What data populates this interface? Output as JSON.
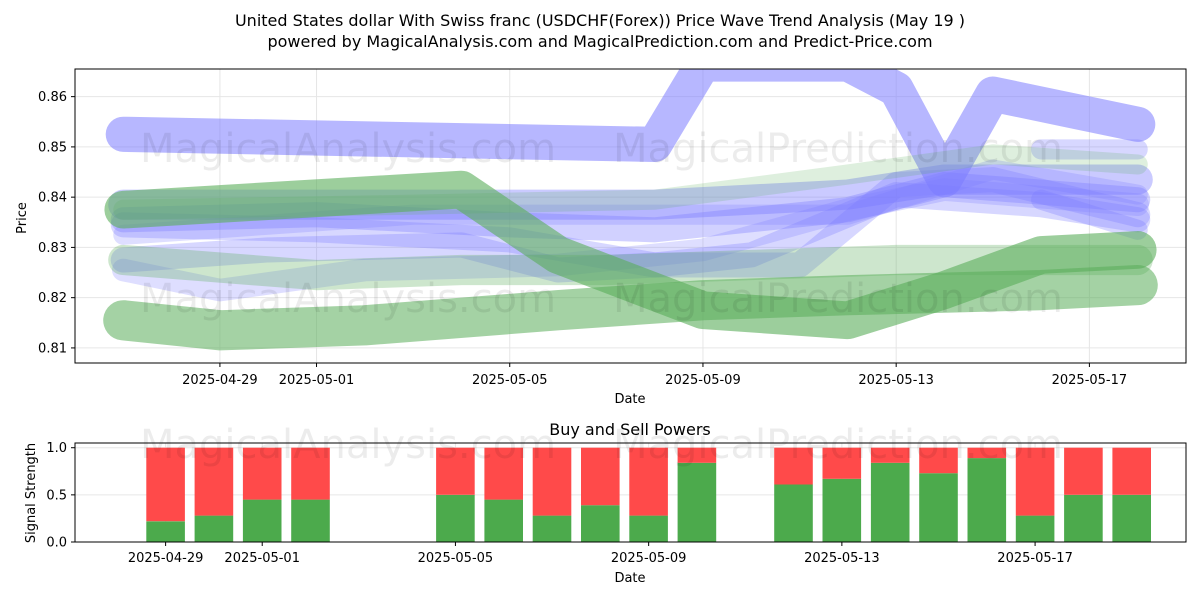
{
  "title": "United States dollar With Swiss franc (USDCHF(Forex)) Price Wave Trend Analysis (May 19 )",
  "subtitle": "powered by MagicalAnalysis.com and MagicalPrediction.com and Predict-Price.com",
  "watermarks": [
    "MagicalAnalysis.com",
    "MagicalPrediction.com"
  ],
  "colors": {
    "blue_band": "#7b7bff",
    "green_band": "#5aad5a",
    "buy": "#4caa4c",
    "sell": "#ff4a4a"
  },
  "chart_data": [
    {
      "type": "line",
      "xlabel": "Date",
      "ylabel": "Price",
      "x_ticks": [
        "2025-04-29",
        "2025-05-01",
        "2025-05-05",
        "2025-05-09",
        "2025-05-13",
        "2025-05-17"
      ],
      "y_ticks": [
        0.81,
        0.82,
        0.83,
        0.84,
        0.85,
        0.86
      ],
      "xlim": [
        "2025-04-26",
        "2025-05-19"
      ],
      "ylim": [
        0.807,
        0.8655
      ],
      "grid": true,
      "series": [
        {
          "color": "blue",
          "width": 14,
          "opacity": 0.55,
          "points": [
            [
              "2025-04-27",
              0.8525
            ],
            [
              "2025-05-08",
              0.8505
            ],
            [
              "2025-05-09",
              0.8665
            ],
            [
              "2025-05-12",
              0.8665
            ],
            [
              "2025-05-13",
              0.8615
            ],
            [
              "2025-05-14",
              0.8435
            ],
            [
              "2025-05-15",
              0.8605
            ],
            [
              "2025-05-16",
              0.8585
            ],
            [
              "2025-05-18",
              0.8545
            ]
          ]
        },
        {
          "color": "blue",
          "width": 12,
          "opacity": 0.4,
          "points": [
            [
              "2025-04-27",
              0.8385
            ],
            [
              "2025-05-04",
              0.8385
            ],
            [
              "2025-05-08",
              0.8385
            ],
            [
              "2025-05-12",
              0.8405
            ],
            [
              "2025-05-14",
              0.8435
            ],
            [
              "2025-05-18",
              0.8435
            ]
          ]
        },
        {
          "color": "blue",
          "width": 10,
          "opacity": 0.35,
          "points": [
            [
              "2025-04-27",
              0.8355
            ],
            [
              "2025-05-01",
              0.8365
            ],
            [
              "2025-05-05",
              0.8345
            ],
            [
              "2025-05-08",
              0.8335
            ],
            [
              "2025-05-12",
              0.8375
            ],
            [
              "2025-05-14",
              0.8425
            ],
            [
              "2025-05-18",
              0.8395
            ]
          ]
        },
        {
          "color": "blue",
          "width": 10,
          "opacity": 0.3,
          "points": [
            [
              "2025-04-27",
              0.8345
            ],
            [
              "2025-05-01",
              0.8335
            ],
            [
              "2025-05-05",
              0.8315
            ],
            [
              "2025-05-08",
              0.8265
            ],
            [
              "2025-05-10",
              0.8285
            ],
            [
              "2025-05-13",
              0.8405
            ],
            [
              "2025-05-16",
              0.8385
            ],
            [
              "2025-05-18",
              0.8355
            ]
          ]
        },
        {
          "color": "blue",
          "width": 10,
          "opacity": 0.3,
          "points": [
            [
              "2025-04-27",
              0.8275
            ],
            [
              "2025-04-30",
              0.8295
            ],
            [
              "2025-05-04",
              0.8305
            ],
            [
              "2025-05-06",
              0.8255
            ],
            [
              "2025-05-08",
              0.8265
            ],
            [
              "2025-05-11",
              0.8265
            ],
            [
              "2025-05-13",
              0.8425
            ],
            [
              "2025-05-15",
              0.8435
            ],
            [
              "2025-05-18",
              0.8365
            ]
          ]
        },
        {
          "color": "blue",
          "width": 9,
          "opacity": 0.25,
          "points": [
            [
              "2025-04-27",
              0.8255
            ],
            [
              "2025-04-29",
              0.8215
            ],
            [
              "2025-05-02",
              0.8255
            ],
            [
              "2025-05-06",
              0.8265
            ],
            [
              "2025-05-09",
              0.8295
            ],
            [
              "2025-05-12",
              0.8375
            ],
            [
              "2025-05-14",
              0.8415
            ],
            [
              "2025-05-18",
              0.8385
            ]
          ]
        },
        {
          "color": "blue",
          "width": 8,
          "opacity": 0.25,
          "points": [
            [
              "2025-04-27",
              0.8325
            ],
            [
              "2025-05-03",
              0.8365
            ],
            [
              "2025-05-08",
              0.8365
            ],
            [
              "2025-05-12",
              0.8365
            ],
            [
              "2025-05-15",
              0.8455
            ],
            [
              "2025-05-18",
              0.8405
            ]
          ]
        },
        {
          "color": "blue",
          "width": 8,
          "opacity": 0.3,
          "points": [
            [
              "2025-05-16",
              0.8495
            ],
            [
              "2025-05-18",
              0.8495
            ]
          ]
        },
        {
          "color": "blue",
          "width": 8,
          "opacity": 0.3,
          "points": [
            [
              "2025-05-16",
              0.8395
            ],
            [
              "2025-05-18",
              0.8335
            ]
          ]
        },
        {
          "color": "green",
          "width": 8,
          "opacity": 0.2,
          "points": [
            [
              "2025-04-27",
              0.8375
            ],
            [
              "2025-05-03",
              0.8385
            ],
            [
              "2025-05-08",
              0.8395
            ],
            [
              "2025-05-12",
              0.8445
            ],
            [
              "2025-05-15",
              0.8485
            ],
            [
              "2025-05-18",
              0.8465
            ]
          ]
        },
        {
          "color": "green",
          "width": 12,
          "opacity": 0.3,
          "points": [
            [
              "2025-04-27",
              0.8275
            ],
            [
              "2025-05-01",
              0.8245
            ],
            [
              "2025-05-04",
              0.8255
            ],
            [
              "2025-05-07",
              0.8255
            ],
            [
              "2025-05-10",
              0.8265
            ],
            [
              "2025-05-13",
              0.8275
            ],
            [
              "2025-05-18",
              0.8275
            ]
          ]
        },
        {
          "color": "green",
          "width": 15,
          "opacity": 0.6,
          "points": [
            [
              "2025-04-27",
              0.8375
            ],
            [
              "2025-05-04",
              0.8415
            ],
            [
              "2025-05-06",
              0.8285
            ],
            [
              "2025-05-09",
              0.8175
            ],
            [
              "2025-05-12",
              0.8155
            ],
            [
              "2025-05-14",
              0.8215
            ],
            [
              "2025-05-16",
              0.8285
            ],
            [
              "2025-05-18",
              0.8295
            ]
          ]
        },
        {
          "color": "green",
          "width": 16,
          "opacity": 0.55,
          "points": [
            [
              "2025-04-27",
              0.8155
            ],
            [
              "2025-04-29",
              0.8135
            ],
            [
              "2025-05-02",
              0.8145
            ],
            [
              "2025-05-06",
              0.8175
            ],
            [
              "2025-05-09",
              0.8195
            ],
            [
              "2025-05-12",
              0.8205
            ],
            [
              "2025-05-16",
              0.8215
            ],
            [
              "2025-05-18",
              0.8225
            ]
          ]
        }
      ]
    },
    {
      "type": "bar",
      "title": "Buy and Sell Powers",
      "xlabel": "Date",
      "ylabel": "Signal Strength",
      "x_ticks": [
        "2025-04-29",
        "2025-05-01",
        "2025-05-05",
        "2025-05-09",
        "2025-05-13",
        "2025-05-17"
      ],
      "y_ticks": [
        "0.0",
        "0.5",
        "1.0"
      ],
      "ylim": [
        0,
        1.05
      ],
      "dates": [
        "2025-04-29",
        "2025-04-30",
        "2025-05-01",
        "2025-05-02",
        "2025-05-05",
        "2025-05-06",
        "2025-05-07",
        "2025-05-08",
        "2025-05-09",
        "2025-05-10",
        "2025-05-12",
        "2025-05-13",
        "2025-05-14",
        "2025-05-15",
        "2025-05-16",
        "2025-05-17",
        "2025-05-18",
        "2025-05-19"
      ],
      "series": [
        {
          "values": [
            0.22,
            0.28,
            0.45,
            0.45,
            0.5,
            0.45,
            0.28,
            0.39,
            0.28,
            0.84,
            0.61,
            0.67,
            0.84,
            0.73,
            0.89,
            0.28,
            0.5,
            0.5
          ]
        },
        {
          "values": [
            0.78,
            0.72,
            0.55,
            0.55,
            0.5,
            0.55,
            0.72,
            0.61,
            0.72,
            0.16,
            0.39,
            0.33,
            0.16,
            0.27,
            0.11,
            0.72,
            0.5,
            0.5
          ]
        }
      ]
    }
  ]
}
